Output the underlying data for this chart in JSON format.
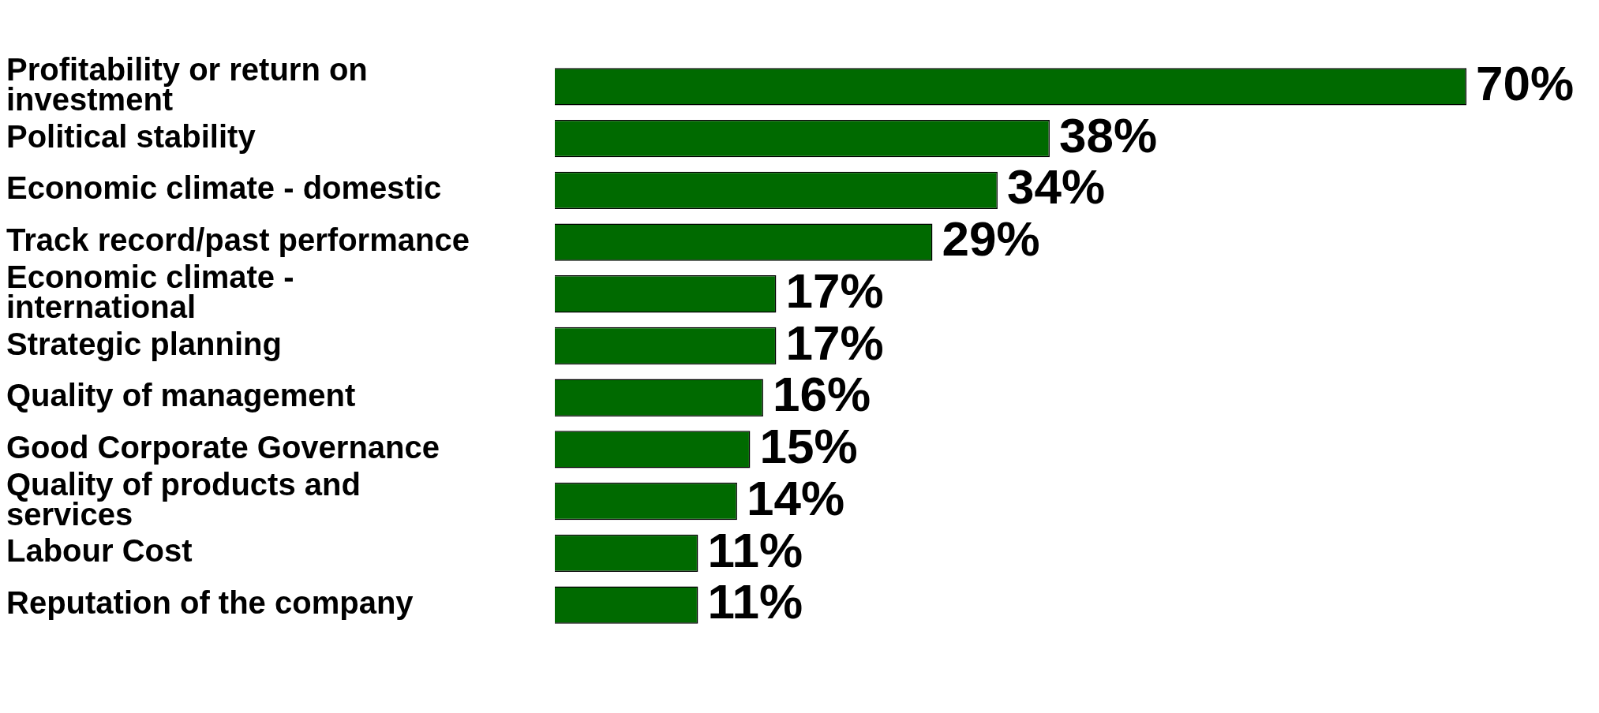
{
  "chart_data": {
    "type": "bar",
    "orientation": "horizontal",
    "categories": [
      "Profitability or return on investment",
      "Political stability",
      "Economic climate - domestic",
      "Track record/past performance",
      "Economic climate - international",
      "Strategic planning",
      "Quality of management",
      "Good Corporate Governance",
      "Quality of products and services",
      "Labour Cost",
      "Reputation of the company"
    ],
    "values": [
      70,
      38,
      34,
      29,
      17,
      17,
      16,
      15,
      14,
      11,
      11
    ],
    "value_labels": [
      "70%",
      "38%",
      "34%",
      "29%",
      "17%",
      "17%",
      "16%",
      "15%",
      "14%",
      "11%",
      "11%"
    ],
    "color": "#006a00",
    "legend": false,
    "tick_labels": "y"
  }
}
